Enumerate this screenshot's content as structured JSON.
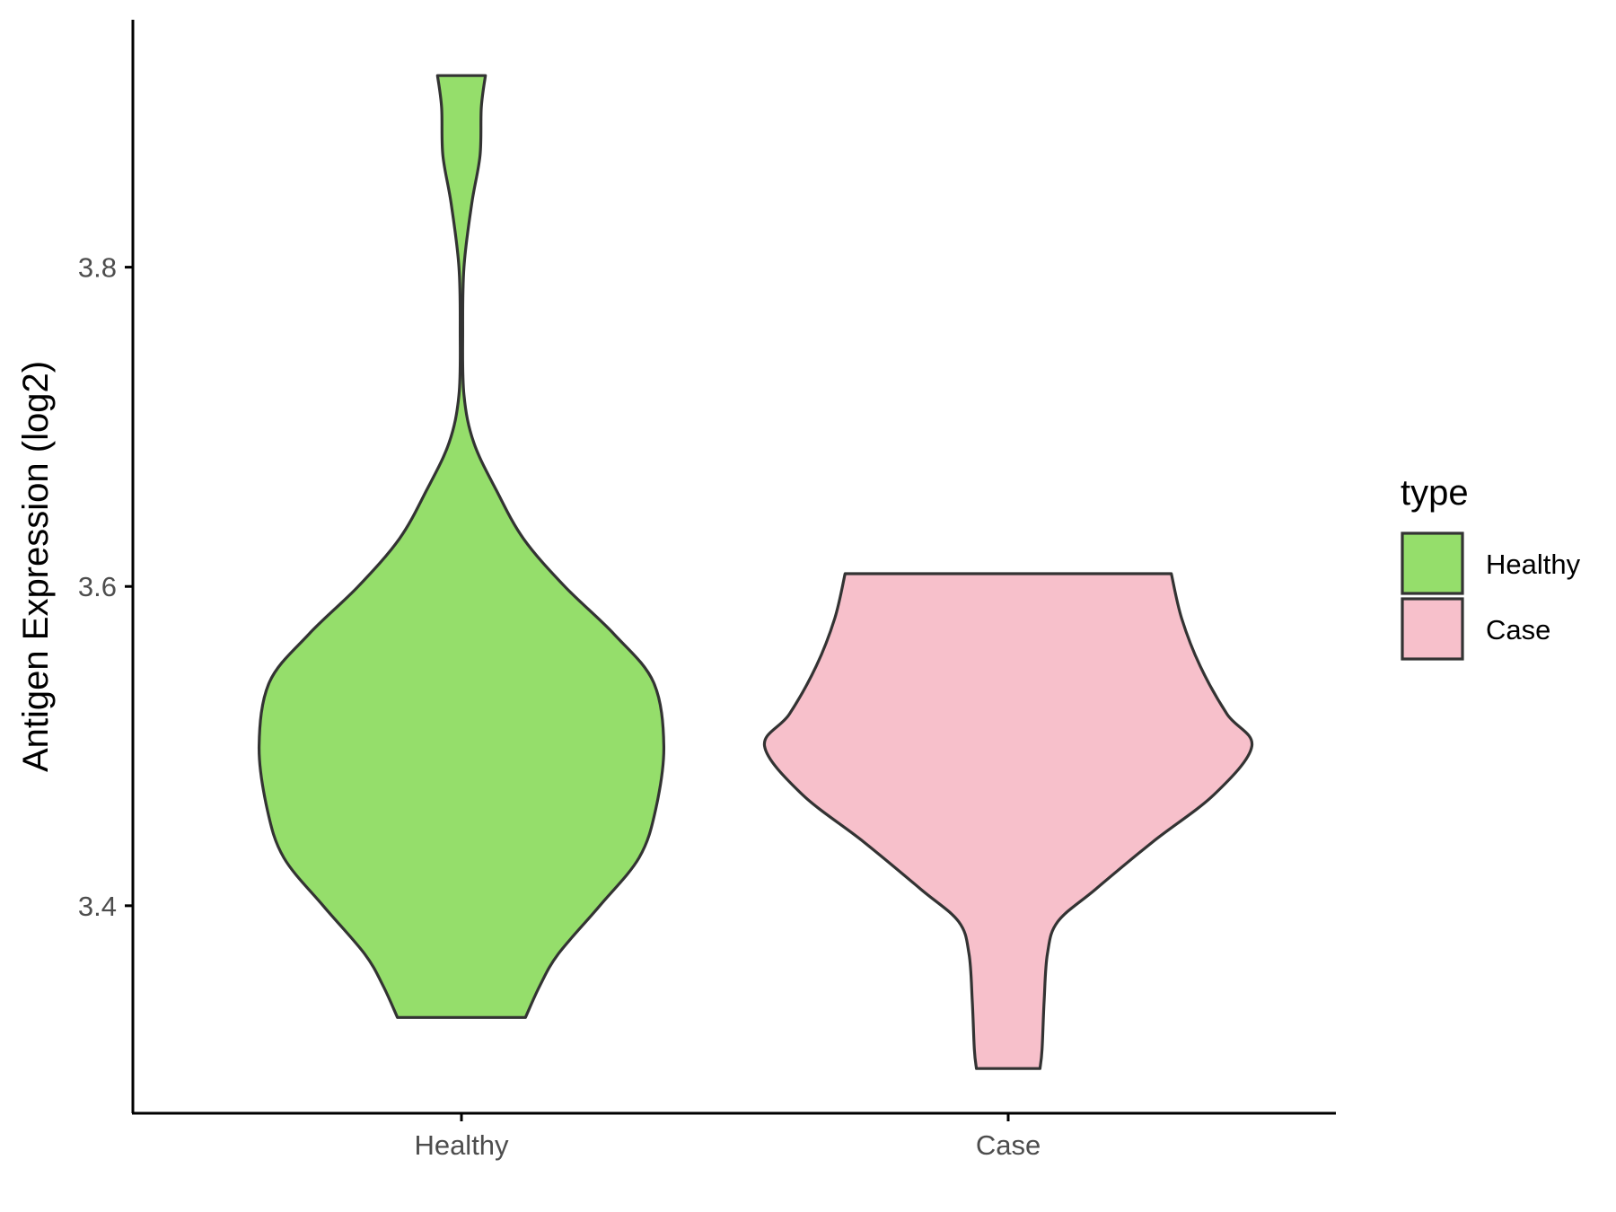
{
  "chart_data": {
    "type": "violin",
    "ylabel": "Antigen Expression (log2)",
    "xlabel": "",
    "title": "",
    "categories": [
      "Healthy",
      "Case"
    ],
    "y_ticks": [
      3.4,
      3.6,
      3.8
    ],
    "y_tick_labels": [
      "3.4",
      "3.6",
      "3.8"
    ],
    "ylim": [
      3.27,
      3.955
    ],
    "grid": false,
    "legend": {
      "title": "type",
      "position": "right",
      "entries": [
        {
          "label": "Healthy",
          "color": "#95DE6B"
        },
        {
          "label": "Case",
          "color": "#F7C0CB"
        }
      ]
    },
    "series": [
      {
        "name": "Healthy",
        "color": "#95DE6B",
        "min": 3.33,
        "max": 3.92,
        "density": [
          [
            3.33,
            0.155
          ],
          [
            3.35,
            0.19
          ],
          [
            3.37,
            0.235
          ],
          [
            3.4,
            0.335
          ],
          [
            3.43,
            0.43
          ],
          [
            3.46,
            0.47
          ],
          [
            3.5,
            0.49
          ],
          [
            3.54,
            0.465
          ],
          [
            3.57,
            0.37
          ],
          [
            3.6,
            0.25
          ],
          [
            3.63,
            0.15
          ],
          [
            3.66,
            0.085
          ],
          [
            3.69,
            0.03
          ],
          [
            3.72,
            0.006
          ],
          [
            3.76,
            0.003
          ],
          [
            3.8,
            0.006
          ],
          [
            3.84,
            0.025
          ],
          [
            3.87,
            0.045
          ],
          [
            3.9,
            0.048
          ],
          [
            3.92,
            0.058
          ]
        ]
      },
      {
        "name": "Case",
        "color": "#F7C0CB",
        "min": 3.298,
        "max": 3.608,
        "density": [
          [
            3.298,
            0.077
          ],
          [
            3.31,
            0.082
          ],
          [
            3.34,
            0.087
          ],
          [
            3.37,
            0.095
          ],
          [
            3.39,
            0.12
          ],
          [
            3.41,
            0.21
          ],
          [
            3.44,
            0.35
          ],
          [
            3.47,
            0.5
          ],
          [
            3.5,
            0.59
          ],
          [
            3.52,
            0.53
          ],
          [
            3.55,
            0.465
          ],
          [
            3.58,
            0.42
          ],
          [
            3.608,
            0.395
          ]
        ]
      }
    ]
  }
}
